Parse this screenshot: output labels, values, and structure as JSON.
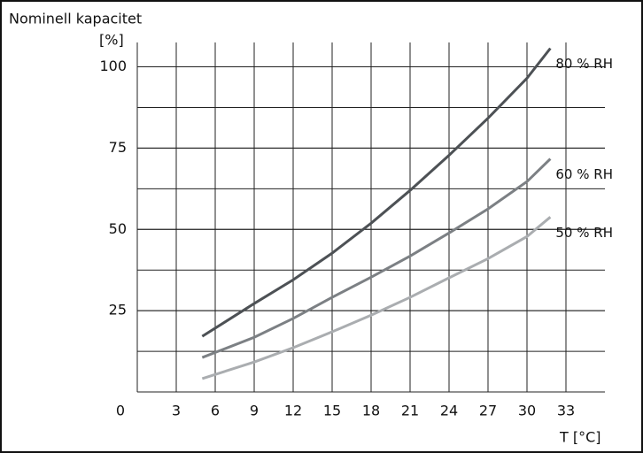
{
  "chart_data": {
    "type": "line",
    "title": "Nominell kapacitet",
    "y_label": "[%]",
    "x_label": "T [°C]",
    "x": [
      5,
      9,
      12,
      15,
      18,
      21,
      24,
      27,
      30,
      31.8
    ],
    "series": [
      {
        "name": "80 % RH",
        "color": "#4d5155",
        "values": [
          17.1,
          27.2,
          34.5,
          42.7,
          51.9,
          62,
          72.8,
          84.2,
          96.5,
          105.7
        ]
      },
      {
        "name": "60 % RH",
        "color": "#7c8084",
        "values": [
          10.6,
          16.8,
          22.6,
          29.1,
          35.3,
          41.8,
          48.9,
          56.3,
          64.7,
          71.7
        ]
      },
      {
        "name": "50 % RH",
        "color": "#aaadb0",
        "values": [
          4.1,
          9.2,
          13.6,
          18.5,
          23.6,
          29.1,
          35.1,
          41,
          47.8,
          53.8
        ]
      }
    ],
    "xlim": [
      0,
      36
    ],
    "xticks": [
      0,
      3,
      6,
      9,
      12,
      15,
      18,
      21,
      24,
      27,
      30,
      33
    ],
    "ylim": [
      0,
      107.5
    ],
    "yticks": [
      25,
      50,
      75,
      100
    ],
    "grid": "major-and-minor"
  }
}
